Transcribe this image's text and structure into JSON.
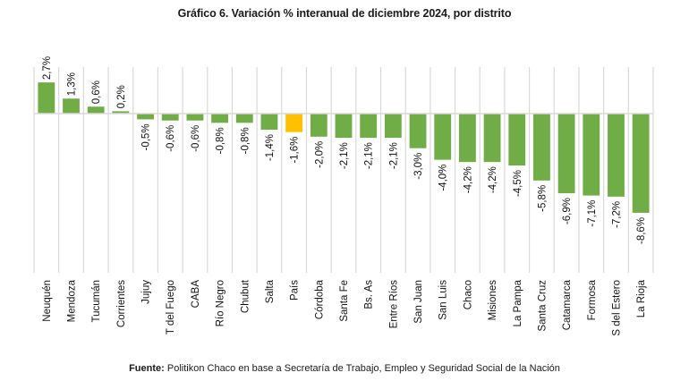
{
  "chart_data": {
    "type": "bar",
    "title": "Gráfico 6. Variación % interanual de diciembre 2024, por distrito",
    "xlabel": "",
    "ylabel": "",
    "ylim": [
      -13.7,
      4.0
    ],
    "grid": "vertical",
    "categories": [
      "Neuquén",
      "Mendoza",
      "Tucumán",
      "Corrientes",
      "Jujuy",
      "T del Fuego",
      "CABA",
      "Río Negro",
      "Chubut",
      "Salta",
      "País",
      "Córdoba",
      "Santa Fe",
      "Bs. As",
      "Entre Ríos",
      "San Juan",
      "San Luis",
      "Chaco",
      "Misiones",
      "La Pampa",
      "Santa Cruz",
      "Catamarca",
      "Formosa",
      "S del Estero",
      "La Rioja"
    ],
    "values": [
      2.7,
      1.3,
      0.6,
      0.2,
      -0.5,
      -0.6,
      -0.6,
      -0.8,
      -0.8,
      -1.4,
      -1.6,
      -2.0,
      -2.1,
      -2.1,
      -2.1,
      -3.0,
      -4.0,
      -4.2,
      -4.2,
      -4.5,
      -5.8,
      -6.9,
      -7.1,
      -7.2,
      -8.6
    ],
    "data_labels": [
      "2,7%",
      "1,3%",
      "0,6%",
      "0,2%",
      "-0,5%",
      "-0,6%",
      "-0,6%",
      "-0,8%",
      "-0,8%",
      "-1,4%",
      "-1,6%",
      "-2,0%",
      "-2,1%",
      "-2,1%",
      "-2,1%",
      "-3,0%",
      "-4,0%",
      "-4,2%",
      "-4,2%",
      "-4,5%",
      "-5,8%",
      "-6,9%",
      "-7,1%",
      "-7,2%",
      "-8,6%"
    ],
    "highlight_category": "País",
    "colors": {
      "bar": "#70ad47",
      "highlight": "#ffc000",
      "grid": "#d9d9d9"
    }
  },
  "footer": {
    "source_label": "Fuente:",
    "source_text": " Politikon Chaco en base a Secretaría de Trabajo, Empleo y Seguridad Social de la Nación"
  }
}
